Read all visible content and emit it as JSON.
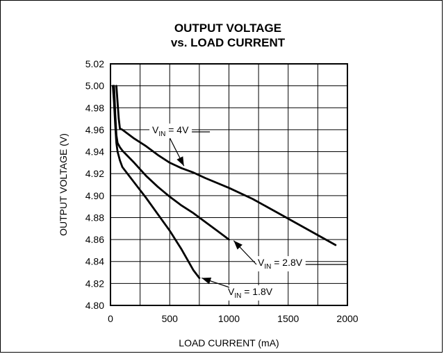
{
  "chart_data": {
    "type": "line",
    "title_lines": [
      "OUTPUT VOLTAGE",
      "vs. LOAD CURRENT"
    ],
    "xlabel": "LOAD CURRENT (mA)",
    "ylabel": "OUTPUT VOLTAGE (V)",
    "xlim": [
      0,
      2000
    ],
    "ylim": [
      4.8,
      5.02
    ],
    "x_major_ticks": [
      0,
      500,
      1000,
      1500,
      2000
    ],
    "x_tick_labels": [
      "0",
      "500",
      "1000",
      "1500",
      "2000"
    ],
    "x_grid_step": 250,
    "y_ticks": [
      4.8,
      4.82,
      4.84,
      4.86,
      4.88,
      4.9,
      4.92,
      4.94,
      4.96,
      4.98,
      5.0,
      5.02
    ],
    "y_tick_labels": [
      "4.80",
      "4.82",
      "4.84",
      "4.86",
      "4.88",
      "4.90",
      "4.92",
      "4.94",
      "4.96",
      "4.98",
      "5.00",
      "5.02"
    ],
    "grid": true,
    "series": [
      {
        "label_main": "V",
        "label_sub": "IN",
        "label_rest": " = 4V",
        "x": [
          50,
          60,
          70,
          80,
          100,
          200,
          300,
          400,
          500,
          600,
          700,
          800,
          1000,
          1200,
          1400,
          1600,
          1800,
          1900
        ],
        "y": [
          5.0,
          4.985,
          4.97,
          4.961,
          4.96,
          4.952,
          4.945,
          4.937,
          4.93,
          4.925,
          4.921,
          4.916,
          4.907,
          4.897,
          4.885,
          4.873,
          4.861,
          4.855
        ]
      },
      {
        "label_main": "V",
        "label_sub": "IN",
        "label_rest": " = 2.8V",
        "x": [
          30,
          40,
          50,
          60,
          80,
          100,
          200,
          300,
          400,
          500,
          600,
          700,
          800,
          900,
          1000
        ],
        "y": [
          5.0,
          4.975,
          4.955,
          4.948,
          4.944,
          4.941,
          4.93,
          4.918,
          4.908,
          4.899,
          4.891,
          4.884,
          4.876,
          4.868,
          4.86
        ]
      },
      {
        "label_main": "V",
        "label_sub": "IN",
        "label_rest": " = 1.8V",
        "x": [
          20,
          30,
          40,
          50,
          60,
          80,
          100,
          200,
          300,
          400,
          500,
          600,
          700,
          750
        ],
        "y": [
          5.0,
          4.985,
          4.965,
          4.948,
          4.94,
          4.932,
          4.926,
          4.912,
          4.898,
          4.883,
          4.868,
          4.851,
          4.832,
          4.825
        ]
      }
    ],
    "annotations": [
      {
        "series": 0,
        "arrow_to": [
          620,
          4.927
        ]
      },
      {
        "series": 1,
        "arrow_to": [
          1040,
          4.859
        ]
      },
      {
        "series": 2,
        "arrow_to": [
          770,
          4.825
        ]
      }
    ]
  }
}
